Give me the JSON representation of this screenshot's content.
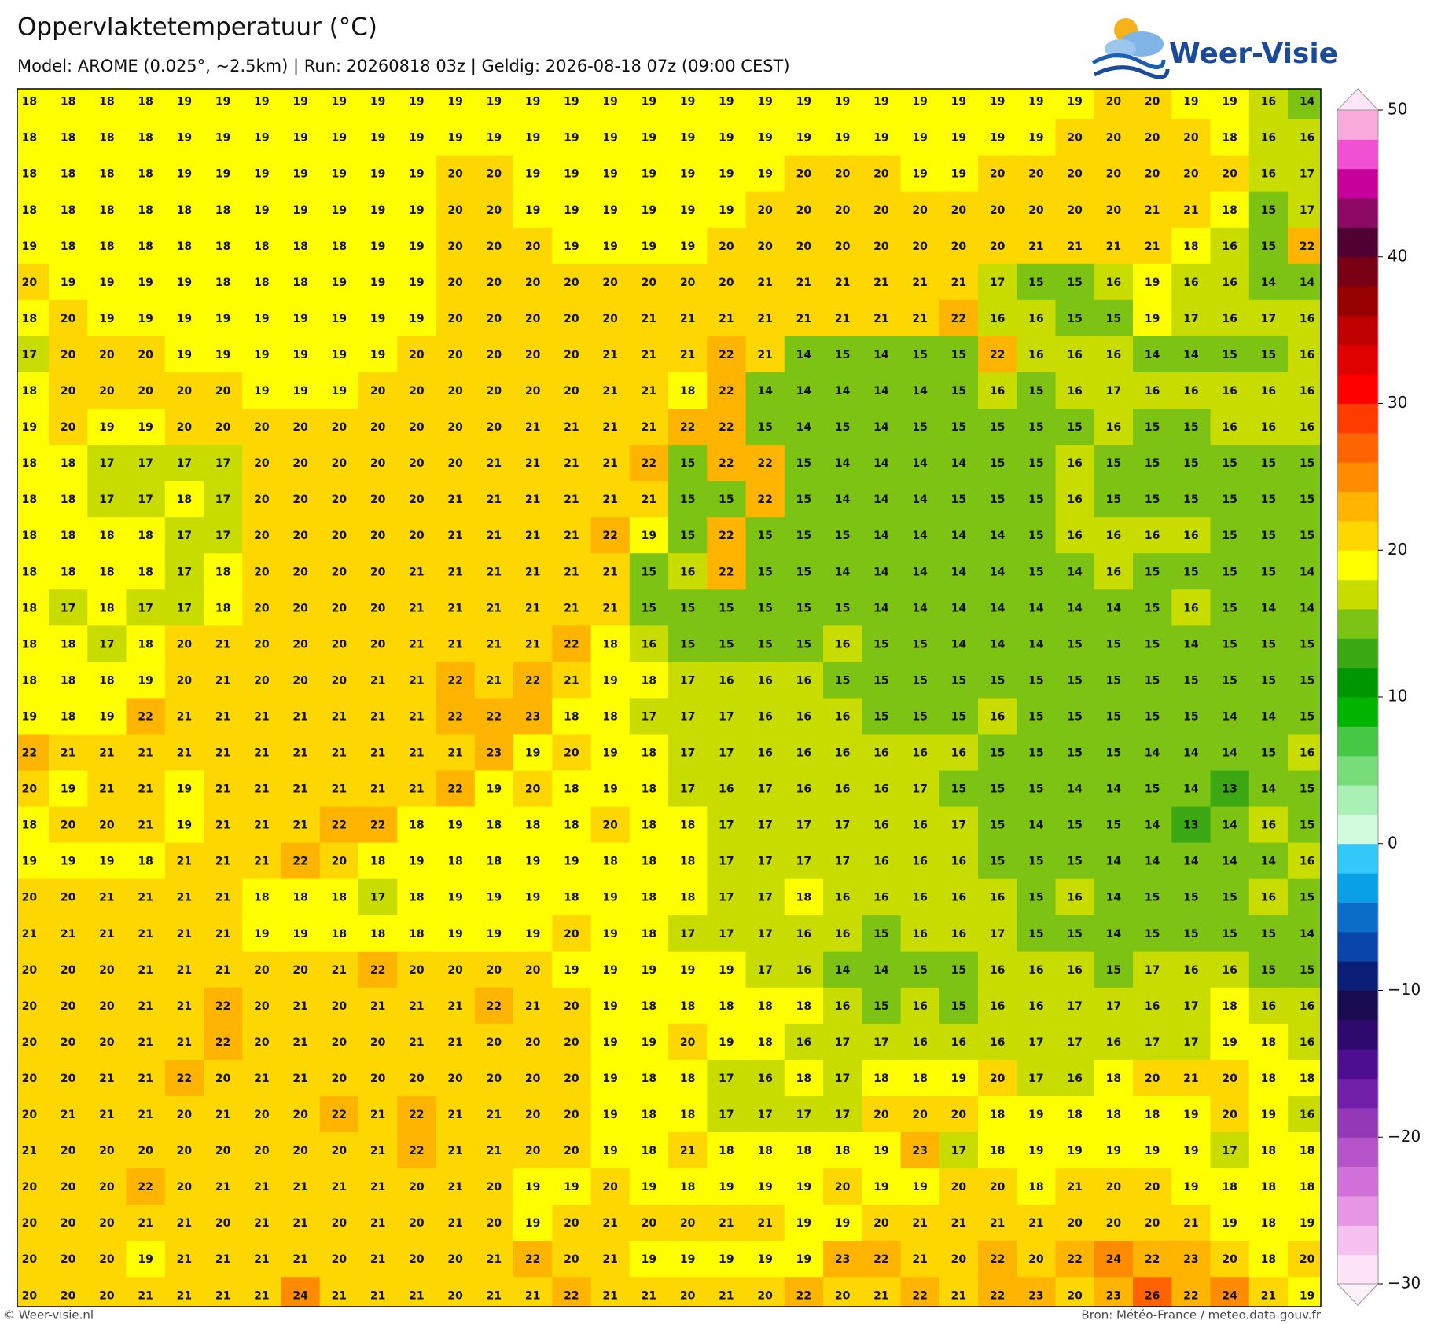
{
  "header": {
    "title": "Oppervlaktetemperatuur (°C)",
    "subtitle": "Model: AROME (0.025°, ~2.5km)  |  Run: 20260818 03z  |  Geldig: 2026-08-18 07z (09:00 CEST)"
  },
  "logo": {
    "text": "Weer-Visie"
  },
  "map": {
    "grid": [
      [
        18,
        18,
        18,
        18,
        19,
        19,
        19,
        19,
        19,
        19,
        19,
        19,
        19,
        19,
        19,
        19,
        19,
        19,
        19,
        19,
        19,
        19,
        19,
        19,
        19,
        19,
        19,
        19,
        20,
        20,
        19,
        19,
        16,
        14
      ],
      [
        18,
        18,
        18,
        18,
        19,
        19,
        19,
        19,
        19,
        19,
        19,
        19,
        19,
        19,
        19,
        19,
        19,
        19,
        19,
        19,
        19,
        19,
        19,
        19,
        19,
        19,
        19,
        20,
        20,
        20,
        20,
        18,
        16,
        16
      ],
      [
        18,
        18,
        18,
        18,
        19,
        19,
        19,
        19,
        19,
        19,
        19,
        20,
        20,
        19,
        19,
        19,
        19,
        19,
        19,
        19,
        20,
        20,
        20,
        19,
        19,
        20,
        20,
        20,
        20,
        20,
        20,
        20,
        16,
        17
      ],
      [
        18,
        18,
        18,
        18,
        18,
        18,
        19,
        19,
        19,
        19,
        19,
        20,
        20,
        19,
        19,
        19,
        19,
        19,
        19,
        20,
        20,
        20,
        20,
        20,
        20,
        20,
        20,
        20,
        20,
        21,
        21,
        18,
        15,
        17
      ],
      [
        19,
        18,
        18,
        18,
        18,
        18,
        18,
        18,
        18,
        19,
        19,
        20,
        20,
        20,
        19,
        19,
        19,
        19,
        20,
        20,
        20,
        20,
        20,
        20,
        20,
        20,
        21,
        21,
        21,
        21,
        18,
        16,
        15,
        22
      ],
      [
        20,
        19,
        19,
        19,
        19,
        18,
        18,
        18,
        19,
        19,
        19,
        20,
        20,
        20,
        20,
        20,
        20,
        20,
        20,
        21,
        21,
        21,
        21,
        21,
        21,
        17,
        15,
        15,
        16,
        19,
        16,
        16,
        14,
        14
      ],
      [
        18,
        20,
        19,
        19,
        19,
        19,
        19,
        19,
        19,
        19,
        19,
        20,
        20,
        20,
        20,
        20,
        21,
        21,
        21,
        21,
        21,
        21,
        21,
        21,
        22,
        16,
        16,
        15,
        15,
        19,
        17,
        16,
        17,
        16
      ],
      [
        17,
        20,
        20,
        20,
        19,
        19,
        19,
        19,
        19,
        19,
        20,
        20,
        20,
        20,
        20,
        21,
        21,
        21,
        22,
        21,
        14,
        15,
        14,
        15,
        15,
        22,
        16,
        16,
        16,
        14,
        14,
        15,
        15,
        16
      ],
      [
        18,
        20,
        20,
        20,
        20,
        20,
        19,
        19,
        19,
        20,
        20,
        20,
        20,
        20,
        20,
        21,
        21,
        18,
        22,
        14,
        14,
        14,
        14,
        14,
        15,
        16,
        15,
        16,
        17,
        16,
        16,
        16,
        16,
        16
      ],
      [
        19,
        20,
        19,
        19,
        20,
        20,
        20,
        20,
        20,
        20,
        20,
        20,
        20,
        21,
        21,
        21,
        21,
        22,
        22,
        15,
        14,
        15,
        14,
        15,
        15,
        15,
        15,
        15,
        16,
        15,
        15,
        16,
        16,
        16
      ],
      [
        18,
        18,
        17,
        17,
        17,
        17,
        20,
        20,
        20,
        20,
        20,
        20,
        21,
        21,
        21,
        21,
        22,
        15,
        22,
        22,
        15,
        14,
        14,
        14,
        14,
        15,
        15,
        16,
        15,
        15,
        15,
        15,
        15,
        15
      ],
      [
        18,
        18,
        17,
        17,
        18,
        17,
        20,
        20,
        20,
        20,
        20,
        21,
        21,
        21,
        21,
        21,
        21,
        15,
        15,
        22,
        15,
        14,
        14,
        14,
        15,
        15,
        15,
        16,
        15,
        15,
        15,
        15,
        15,
        15
      ],
      [
        18,
        18,
        18,
        18,
        17,
        17,
        20,
        20,
        20,
        20,
        20,
        21,
        21,
        21,
        21,
        22,
        19,
        15,
        22,
        15,
        15,
        15,
        14,
        14,
        14,
        14,
        15,
        16,
        16,
        16,
        16,
        15,
        15,
        15
      ],
      [
        18,
        18,
        18,
        18,
        17,
        18,
        20,
        20,
        20,
        20,
        21,
        21,
        21,
        21,
        21,
        21,
        15,
        16,
        22,
        15,
        15,
        14,
        14,
        14,
        14,
        14,
        15,
        14,
        16,
        15,
        15,
        15,
        15,
        14
      ],
      [
        18,
        17,
        18,
        17,
        17,
        18,
        20,
        20,
        20,
        20,
        21,
        21,
        21,
        21,
        21,
        21,
        15,
        15,
        15,
        15,
        15,
        15,
        14,
        14,
        14,
        14,
        14,
        14,
        14,
        15,
        16,
        15,
        14,
        14
      ],
      [
        18,
        18,
        17,
        18,
        20,
        21,
        20,
        20,
        20,
        20,
        21,
        21,
        21,
        21,
        22,
        18,
        16,
        15,
        15,
        15,
        15,
        16,
        15,
        15,
        14,
        14,
        14,
        15,
        15,
        15,
        14,
        15,
        15,
        15
      ],
      [
        18,
        18,
        18,
        19,
        20,
        21,
        20,
        20,
        20,
        21,
        21,
        22,
        21,
        22,
        21,
        19,
        18,
        17,
        16,
        16,
        16,
        15,
        15,
        15,
        15,
        15,
        15,
        15,
        15,
        15,
        15,
        15,
        15,
        15
      ],
      [
        19,
        18,
        19,
        22,
        21,
        21,
        21,
        21,
        21,
        21,
        21,
        22,
        22,
        23,
        18,
        18,
        17,
        17,
        17,
        16,
        16,
        16,
        15,
        15,
        15,
        16,
        15,
        15,
        15,
        15,
        15,
        14,
        14,
        15
      ],
      [
        22,
        21,
        21,
        21,
        21,
        21,
        21,
        21,
        21,
        21,
        21,
        21,
        23,
        19,
        20,
        19,
        18,
        17,
        17,
        16,
        16,
        16,
        16,
        16,
        16,
        15,
        15,
        15,
        15,
        14,
        14,
        14,
        15,
        16
      ],
      [
        20,
        19,
        21,
        21,
        19,
        21,
        21,
        21,
        21,
        21,
        21,
        22,
        19,
        20,
        18,
        19,
        18,
        17,
        16,
        17,
        16,
        16,
        16,
        17,
        15,
        15,
        15,
        14,
        14,
        15,
        14,
        13,
        14,
        15
      ],
      [
        18,
        20,
        20,
        21,
        19,
        21,
        21,
        21,
        22,
        22,
        18,
        19,
        18,
        18,
        18,
        20,
        18,
        18,
        17,
        17,
        17,
        17,
        16,
        16,
        17,
        15,
        14,
        15,
        15,
        14,
        13,
        14,
        16,
        15
      ],
      [
        19,
        19,
        19,
        18,
        21,
        21,
        21,
        22,
        20,
        18,
        19,
        18,
        18,
        19,
        19,
        18,
        18,
        18,
        17,
        17,
        17,
        17,
        16,
        16,
        16,
        15,
        15,
        15,
        14,
        14,
        14,
        14,
        14,
        16
      ],
      [
        20,
        20,
        21,
        21,
        21,
        21,
        18,
        18,
        18,
        17,
        18,
        19,
        19,
        19,
        18,
        19,
        18,
        18,
        17,
        17,
        18,
        16,
        16,
        16,
        16,
        16,
        15,
        16,
        14,
        15,
        15,
        15,
        16,
        15
      ],
      [
        21,
        21,
        21,
        21,
        21,
        21,
        19,
        19,
        18,
        18,
        18,
        19,
        19,
        19,
        20,
        19,
        18,
        17,
        17,
        17,
        16,
        16,
        15,
        16,
        16,
        17,
        15,
        15,
        14,
        15,
        15,
        15,
        15,
        14
      ],
      [
        20,
        20,
        20,
        21,
        21,
        21,
        20,
        20,
        21,
        22,
        20,
        20,
        20,
        20,
        19,
        19,
        19,
        19,
        19,
        17,
        16,
        14,
        14,
        15,
        15,
        16,
        16,
        16,
        15,
        17,
        16,
        16,
        15,
        15
      ],
      [
        20,
        20,
        20,
        21,
        21,
        22,
        20,
        21,
        20,
        21,
        21,
        21,
        22,
        21,
        20,
        19,
        18,
        18,
        18,
        18,
        18,
        16,
        15,
        16,
        15,
        16,
        16,
        17,
        17,
        16,
        17,
        18,
        16,
        16
      ],
      [
        20,
        20,
        20,
        21,
        21,
        22,
        20,
        21,
        20,
        20,
        21,
        21,
        20,
        20,
        20,
        19,
        19,
        20,
        19,
        18,
        16,
        17,
        17,
        16,
        16,
        16,
        17,
        17,
        16,
        17,
        17,
        19,
        18,
        16
      ],
      [
        20,
        20,
        21,
        21,
        22,
        20,
        21,
        21,
        20,
        20,
        20,
        20,
        20,
        20,
        20,
        19,
        18,
        18,
        17,
        16,
        18,
        17,
        18,
        18,
        19,
        20,
        17,
        16,
        18,
        20,
        21,
        20,
        18,
        18
      ],
      [
        20,
        21,
        21,
        21,
        20,
        21,
        20,
        20,
        22,
        21,
        22,
        21,
        21,
        20,
        20,
        19,
        18,
        18,
        17,
        17,
        17,
        17,
        20,
        20,
        20,
        18,
        19,
        18,
        18,
        18,
        19,
        20,
        19,
        16
      ],
      [
        21,
        20,
        20,
        20,
        20,
        20,
        20,
        20,
        20,
        21,
        22,
        21,
        21,
        20,
        20,
        19,
        18,
        21,
        18,
        18,
        18,
        18,
        19,
        23,
        17,
        18,
        19,
        19,
        19,
        19,
        19,
        17,
        18,
        18
      ],
      [
        20,
        20,
        20,
        22,
        20,
        21,
        21,
        21,
        21,
        21,
        20,
        21,
        20,
        19,
        19,
        20,
        19,
        18,
        19,
        19,
        19,
        20,
        19,
        19,
        20,
        20,
        18,
        21,
        20,
        20,
        19,
        18,
        18,
        18
      ],
      [
        20,
        20,
        20,
        21,
        21,
        20,
        21,
        21,
        20,
        21,
        20,
        21,
        20,
        19,
        20,
        21,
        20,
        20,
        21,
        21,
        19,
        19,
        20,
        21,
        21,
        21,
        21,
        20,
        20,
        20,
        21,
        19,
        18,
        19
      ],
      [
        20,
        20,
        20,
        19,
        21,
        21,
        21,
        21,
        20,
        21,
        20,
        20,
        21,
        22,
        20,
        21,
        19,
        19,
        19,
        19,
        19,
        23,
        22,
        21,
        20,
        22,
        20,
        22,
        24,
        22,
        23,
        20,
        18,
        20
      ],
      [
        20,
        20,
        20,
        21,
        21,
        21,
        21,
        24,
        21,
        21,
        21,
        20,
        21,
        21,
        22,
        21,
        21,
        20,
        21,
        20,
        22,
        20,
        21,
        22,
        21,
        22,
        23,
        20,
        23,
        26,
        22,
        24,
        21,
        19
      ]
    ]
  },
  "colorbar": {
    "clim": [
      -30,
      50
    ],
    "ticks": [
      50,
      40,
      30,
      20,
      10,
      0,
      {
        "value": -10,
        "label": "−10"
      },
      {
        "value": -20,
        "label": "−20"
      },
      {
        "value": -30,
        "label": "−30"
      }
    ],
    "colors": [
      "#fde2f8",
      "#f6c0f0",
      "#e696e4",
      "#d070d8",
      "#b454c8",
      "#9438b8",
      "#7020a8",
      "#4e0e92",
      "#2e0a6e",
      "#1a0a50",
      "#0a1e78",
      "#0a46aa",
      "#0a6ec8",
      "#0aa0e6",
      "#32c8f8",
      "#d2fadc",
      "#a8f0b4",
      "#78dc78",
      "#46c846",
      "#00b400",
      "#009600",
      "#3ca814",
      "#7dc314",
      "#c8dc00",
      "#ffff00",
      "#ffd700",
      "#ffb400",
      "#ff8c00",
      "#ff6400",
      "#ff3c00",
      "#ff0000",
      "#e10000",
      "#be0000",
      "#960000",
      "#780014",
      "#500032",
      "#8c0a64",
      "#c8009b",
      "#f050d2",
      "#f8aadc"
    ],
    "color_over": "#fde6f5",
    "color_under": "#fdf0fb"
  },
  "footer": {
    "left": "© Weer-visie.nl",
    "right": "Bron: Météo-France / meteo.data.gouv.fr"
  }
}
